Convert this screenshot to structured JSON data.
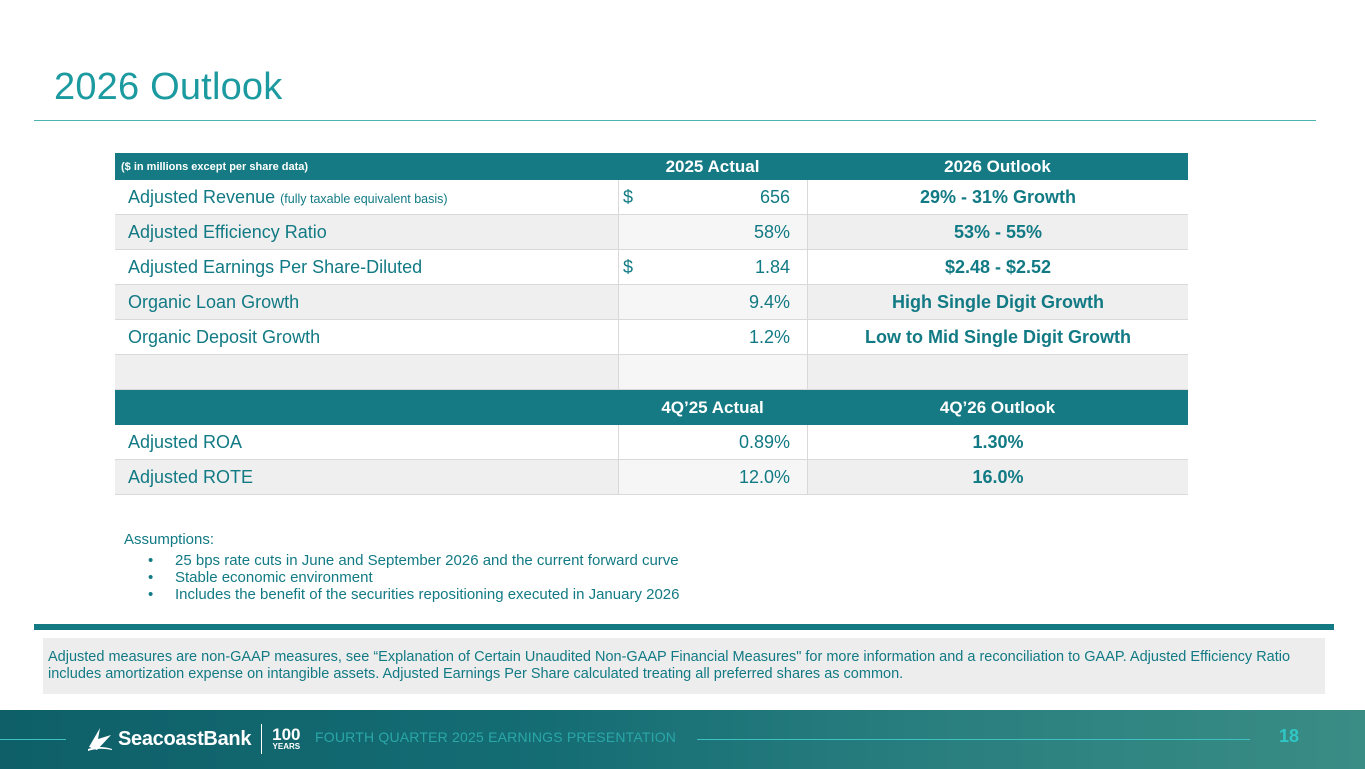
{
  "title": "2026 Outlook",
  "table": {
    "header_note": "($ in millions except per share data)",
    "col2_header": "2025 Actual",
    "col3_header": "2026 Outlook",
    "rows": [
      {
        "label": "Adjusted Revenue",
        "label_note": "(fully taxable equivalent basis)",
        "dollar": "$",
        "actual": "656",
        "outlook": "29% - 31% Growth"
      },
      {
        "label": "Adjusted Efficiency Ratio",
        "label_note": "",
        "dollar": "",
        "actual": "58%",
        "outlook": "53% - 55%"
      },
      {
        "label": "Adjusted Earnings Per Share-Diluted",
        "label_note": "",
        "dollar": "$",
        "actual": "1.84",
        "outlook": "$2.48 - $2.52"
      },
      {
        "label": "Organic Loan Growth",
        "label_note": "",
        "dollar": "",
        "actual": "9.4%",
        "outlook": "High Single Digit Growth"
      },
      {
        "label": "Organic Deposit Growth",
        "label_note": "",
        "dollar": "",
        "actual": "1.2%",
        "outlook": "Low to Mid Single Digit Growth"
      }
    ],
    "q_col2_header": "4Q’25 Actual",
    "q_col3_header": "4Q’26 Outlook",
    "q_rows": [
      {
        "label": "Adjusted ROA",
        "actual": "0.89%",
        "outlook": "1.30%"
      },
      {
        "label": "Adjusted ROTE",
        "actual": "12.0%",
        "outlook": "16.0%"
      }
    ]
  },
  "assumptions": {
    "heading": "Assumptions:",
    "items": [
      "25 bps rate cuts in June and September 2026 and the current forward curve",
      "Stable economic environment",
      "Includes the benefit of the securities repositioning executed in January 2026"
    ]
  },
  "note": "Adjusted measures are non-GAAP measures, see “Explanation of Certain Unaudited Non-GAAP Financial Measures\" for more information and a reconciliation to GAAP. Adjusted Efficiency Ratio includes amortization expense on intangible assets. Adjusted Earnings Per Share calculated treating all preferred shares as common.",
  "footer": {
    "brand": "SeacoastBank",
    "years_num": "100",
    "years_label": "YEARS",
    "presentation": "FOURTH QUARTER 2025 EARNINGS PRESENTATION",
    "page_number": "18"
  },
  "colors": {
    "accent": "#157a83",
    "title": "#1b9aa0",
    "text": "#127a84"
  }
}
